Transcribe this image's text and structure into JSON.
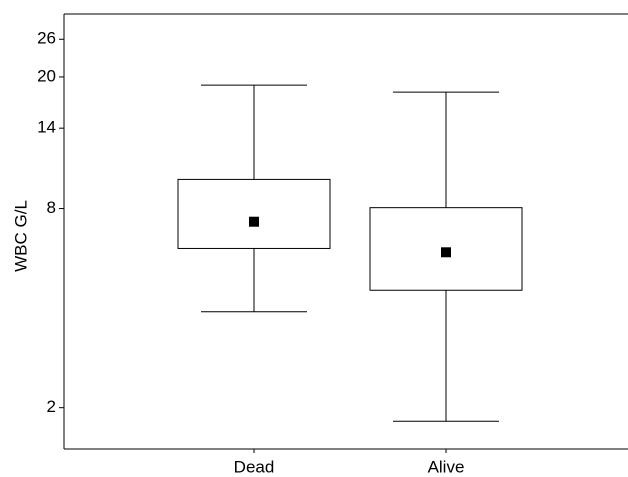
{
  "chart_data": {
    "type": "box",
    "y_label": "WBC G/L",
    "log_scale": true,
    "categories": [
      "Dead",
      "Alive"
    ],
    "whisker_high": [
      18.9,
      18.0
    ],
    "box_high": [
      9.8,
      8.05
    ],
    "mean": [
      7.3,
      5.9
    ],
    "box_low": [
      6.06,
      4.53
    ],
    "whisker_low": [
      3.9,
      1.82
    ],
    "color": "#000000",
    "ylim": [
      1.5,
      31
    ],
    "yticks": [
      2,
      8,
      14,
      20,
      26
    ]
  }
}
